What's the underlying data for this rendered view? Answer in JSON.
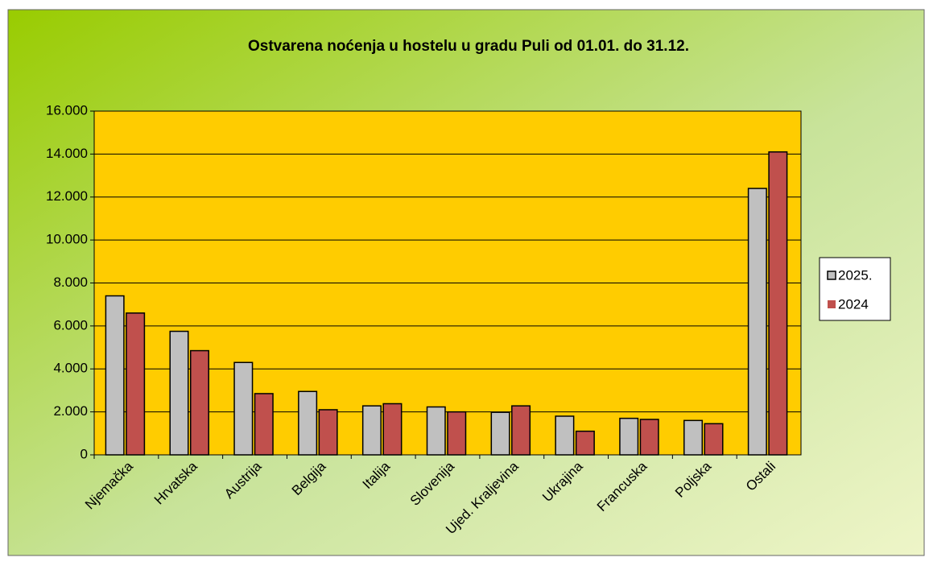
{
  "chart_data": {
    "type": "bar",
    "title": "Ostvarena noćenja u hostelu u gradu Puli od 01.01. do 31.12.",
    "categories": [
      "Njemačka",
      "Hrvatska",
      "Austrija",
      "Belgija",
      "Italija",
      "Slovenija",
      "Ujed. Kraljevina",
      "Ukrajina",
      "Francuska",
      "Poljska",
      "Ostali"
    ],
    "series": [
      {
        "name": "2025.",
        "color": "#c0c0c0",
        "values": [
          7400,
          5750,
          4300,
          2950,
          2280,
          2230,
          1980,
          1800,
          1700,
          1600,
          12400
        ]
      },
      {
        "name": "2024",
        "color": "#c0504d",
        "values": [
          6600,
          4850,
          2850,
          2100,
          2380,
          2000,
          2280,
          1100,
          1650,
          1450,
          14100
        ]
      }
    ],
    "ylim": [
      0,
      16000
    ],
    "yticks": [
      0,
      {
        "value": 2000,
        "label": "2.000"
      },
      {
        "value": 4000,
        "label": "4.000"
      },
      {
        "value": 6000,
        "label": "6.000"
      },
      {
        "value": 8000,
        "label": "8.000"
      },
      {
        "value": 10000,
        "label": "10.000"
      },
      {
        "value": 12000,
        "label": "12.000"
      },
      {
        "value": 14000,
        "label": "14.000"
      },
      {
        "value": 16000,
        "label": "16.000"
      }
    ],
    "grid": true,
    "legend": "right",
    "plot_background": "#ffcc00"
  }
}
